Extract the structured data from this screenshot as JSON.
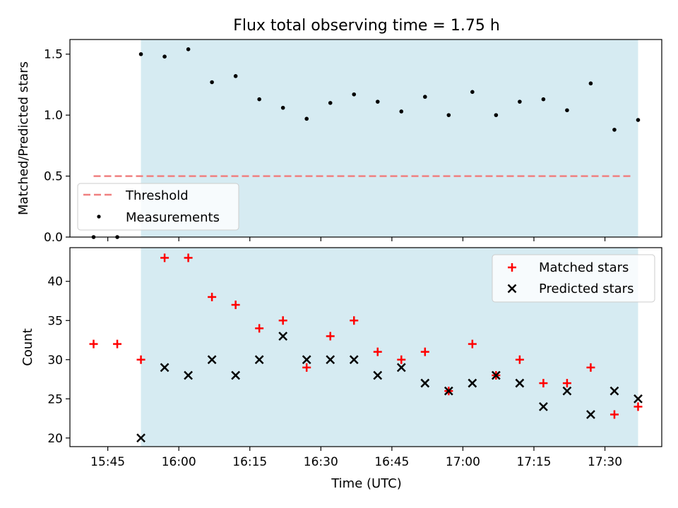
{
  "figure": {
    "title": "Flux total observing time = 1.75 h"
  },
  "colors": {
    "observing_window": "#add8e6",
    "threshold": "#f08080",
    "measurements": "#000000",
    "matched": "#ff0000",
    "predicted": "#000000"
  },
  "chart_data": [
    {
      "type": "scatter",
      "panel": "top",
      "title": "Flux total observing time = 1.75 h",
      "xlabel": "",
      "ylabel": "Matched/Predicted stars",
      "xlim": [
        "15:37",
        "17:42"
      ],
      "ylim": [
        0,
        1.62
      ],
      "yticks": [
        0.0,
        0.5,
        1.0,
        1.5
      ],
      "ytick_labels": [
        "0.0",
        "0.5",
        "1.0",
        "1.5"
      ],
      "grid": false,
      "legend": {
        "placement": "lower-left",
        "entries": [
          "Threshold",
          "Measurements"
        ]
      },
      "observing_window": [
        "15:52",
        "17:37"
      ],
      "threshold": {
        "name": "Threshold",
        "value": 0.5,
        "x_range": [
          "15:42",
          "17:36"
        ]
      },
      "series": [
        {
          "name": "Measurements",
          "x": [
            "15:42",
            "15:47",
            "15:52",
            "15:57",
            "16:02",
            "16:07",
            "16:12",
            "16:17",
            "16:22",
            "16:27",
            "16:32",
            "16:37",
            "16:42",
            "16:47",
            "16:52",
            "16:57",
            "17:02",
            "17:07",
            "17:12",
            "17:17",
            "17:22",
            "17:27",
            "17:32",
            "17:37"
          ],
          "y": [
            0.0,
            0.0,
            1.5,
            1.48,
            1.54,
            1.27,
            1.32,
            1.13,
            1.06,
            0.97,
            1.1,
            1.17,
            1.11,
            1.03,
            1.15,
            1.0,
            1.19,
            1.0,
            1.11,
            1.13,
            1.04,
            1.26,
            0.88,
            0.96
          ]
        }
      ]
    },
    {
      "type": "scatter",
      "panel": "bottom",
      "xlabel": "Time (UTC)",
      "ylabel": "Count",
      "xlim": [
        "15:37",
        "17:42"
      ],
      "ylim": [
        18.9,
        44.3
      ],
      "xticks": [
        "15:45",
        "16:00",
        "16:15",
        "16:30",
        "16:45",
        "17:00",
        "17:15",
        "17:30"
      ],
      "yticks": [
        20,
        25,
        30,
        35,
        40
      ],
      "ytick_labels": [
        "20",
        "25",
        "30",
        "35",
        "40"
      ],
      "grid": false,
      "legend": {
        "placement": "top-right",
        "entries": [
          "Matched stars",
          "Predicted stars"
        ]
      },
      "observing_window": [
        "15:52",
        "17:37"
      ],
      "series": [
        {
          "name": "Matched stars",
          "marker": "plus",
          "x": [
            "15:42",
            "15:47",
            "15:52",
            "15:57",
            "16:02",
            "16:07",
            "16:12",
            "16:17",
            "16:22",
            "16:27",
            "16:32",
            "16:37",
            "16:42",
            "16:47",
            "16:52",
            "16:57",
            "17:02",
            "17:07",
            "17:12",
            "17:17",
            "17:22",
            "17:27",
            "17:32",
            "17:37"
          ],
          "y": [
            32,
            32,
            30,
            43,
            43,
            38,
            37,
            34,
            35,
            29,
            33,
            35,
            31,
            30,
            31,
            26,
            32,
            28,
            30,
            27,
            27,
            29,
            23,
            24
          ]
        },
        {
          "name": "Predicted stars",
          "marker": "x",
          "x": [
            "15:52",
            "15:57",
            "16:02",
            "16:07",
            "16:12",
            "16:17",
            "16:22",
            "16:27",
            "16:32",
            "16:37",
            "16:42",
            "16:47",
            "16:52",
            "16:57",
            "17:02",
            "17:07",
            "17:12",
            "17:17",
            "17:22",
            "17:27",
            "17:32",
            "17:37"
          ],
          "y": [
            20,
            29,
            28,
            30,
            28,
            30,
            33,
            30,
            30,
            30,
            28,
            29,
            27,
            26,
            27,
            28,
            27,
            24,
            26,
            23,
            26,
            25
          ]
        }
      ]
    }
  ]
}
